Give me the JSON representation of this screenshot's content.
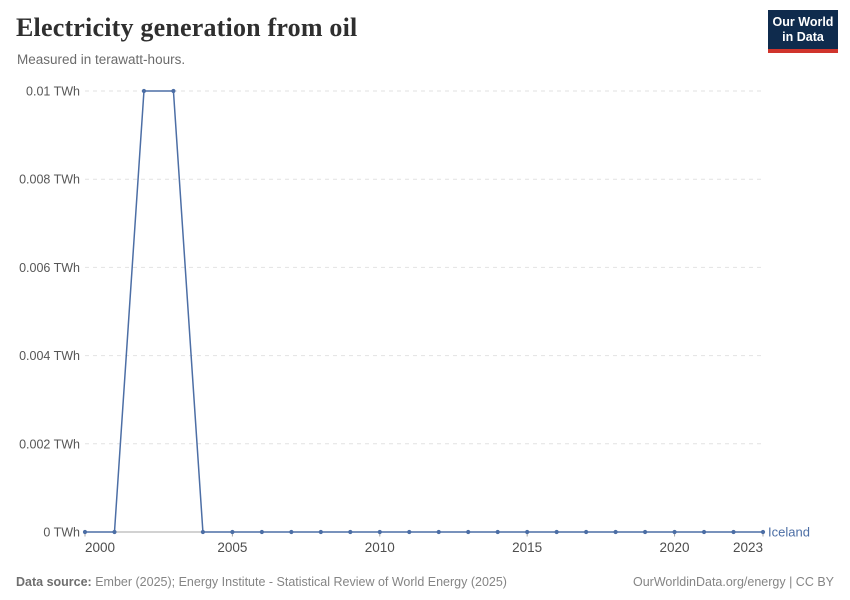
{
  "header": {
    "title": "Electricity generation from oil",
    "subtitle": "Measured in terawatt-hours.",
    "logo": {
      "line1": "Our World",
      "line2": "in Data"
    }
  },
  "chart_data": {
    "type": "line",
    "title": "Electricity generation from oil",
    "subtitle": "Measured in terawatt-hours.",
    "unit": "TWh",
    "xlim": [
      2000,
      2023
    ],
    "ylim": [
      0,
      0.01
    ],
    "x_ticks": [
      2000,
      2005,
      2010,
      2015,
      2020,
      2023
    ],
    "y_ticks": [
      0,
      0.002,
      0.004,
      0.006,
      0.008,
      0.01
    ],
    "y_tick_labels": [
      "0 TWh",
      "0.002 TWh",
      "0.004 TWh",
      "0.006 TWh",
      "0.008 TWh",
      "0.01 TWh"
    ],
    "grid": "horizontal-dashed",
    "legend_position": "end-of-line",
    "series": [
      {
        "name": "Iceland",
        "color": "#4C6EA5",
        "x": [
          2000,
          2001,
          2002,
          2003,
          2004,
          2005,
          2006,
          2007,
          2008,
          2009,
          2010,
          2011,
          2012,
          2013,
          2014,
          2015,
          2016,
          2017,
          2018,
          2019,
          2020,
          2021,
          2022,
          2023
        ],
        "values": [
          0,
          0,
          0.01,
          0.01,
          0,
          0,
          0,
          0,
          0,
          0,
          0,
          0,
          0,
          0,
          0,
          0,
          0,
          0,
          0,
          0,
          0,
          0,
          0,
          0
        ]
      }
    ]
  },
  "footer": {
    "source_label": "Data source:",
    "source_text": " Ember (2025); Energy Institute - Statistical Review of World Energy (2025)",
    "credit": "OurWorldinData.org/energy | CC BY"
  },
  "colors": {
    "line_blue": "#4C6EA5",
    "logo_bg": "#0F2B4D",
    "logo_red": "#D0342C",
    "gridline": "#E2E2E2",
    "axis_line": "#A5A5A5"
  }
}
